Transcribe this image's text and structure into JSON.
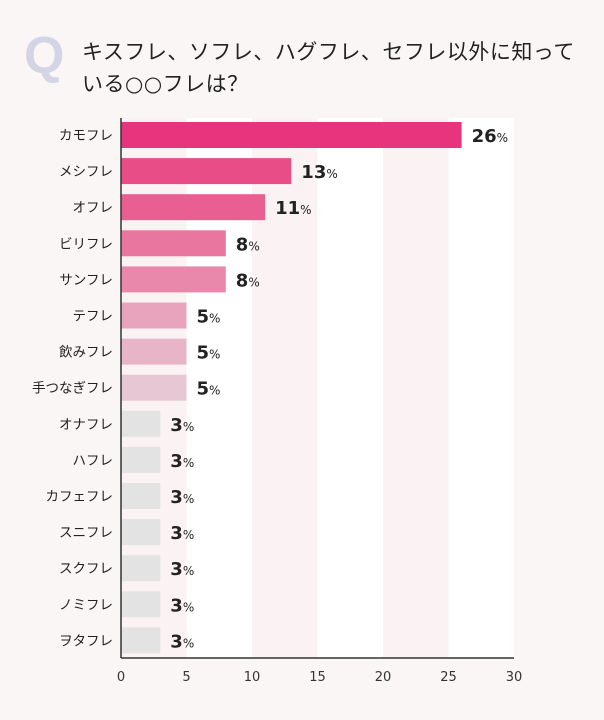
{
  "question_mark": "Q",
  "chart_data": {
    "type": "bar",
    "orientation": "horizontal",
    "title": "キスフレ、ソフレ、ハグフレ、セフレ以外に知っている○○フレは？",
    "categories": [
      "カモフレ",
      "メシフレ",
      "オフレ",
      "ビリフレ",
      "サンフレ",
      "テフレ",
      "飲みフレ",
      "手つなぎフレ",
      "オナフレ",
      "ハフレ",
      "カフェフレ",
      "スニフレ",
      "スクフレ",
      "ノミフレ",
      "ヲタフレ"
    ],
    "values": [
      26,
      13,
      11,
      8,
      8,
      5,
      5,
      5,
      3,
      3,
      3,
      3,
      3,
      3,
      3
    ],
    "value_suffix": "%",
    "xlim": [
      0,
      30
    ],
    "xticks": [
      0,
      5,
      10,
      15,
      20,
      25,
      30
    ],
    "grid": "alternating vertical bands",
    "colors": [
      "#e8347c",
      "#e84d87",
      "#e95f92",
      "#e9769f",
      "#ea88ab",
      "#e8a3bd",
      "#e8b4c8",
      "#e7c7d4",
      "#e3e3e3",
      "#e3e3e3",
      "#e3e3e3",
      "#e3e3e3",
      "#e3e3e3",
      "#e3e3e3",
      "#e3e3e3"
    ]
  }
}
